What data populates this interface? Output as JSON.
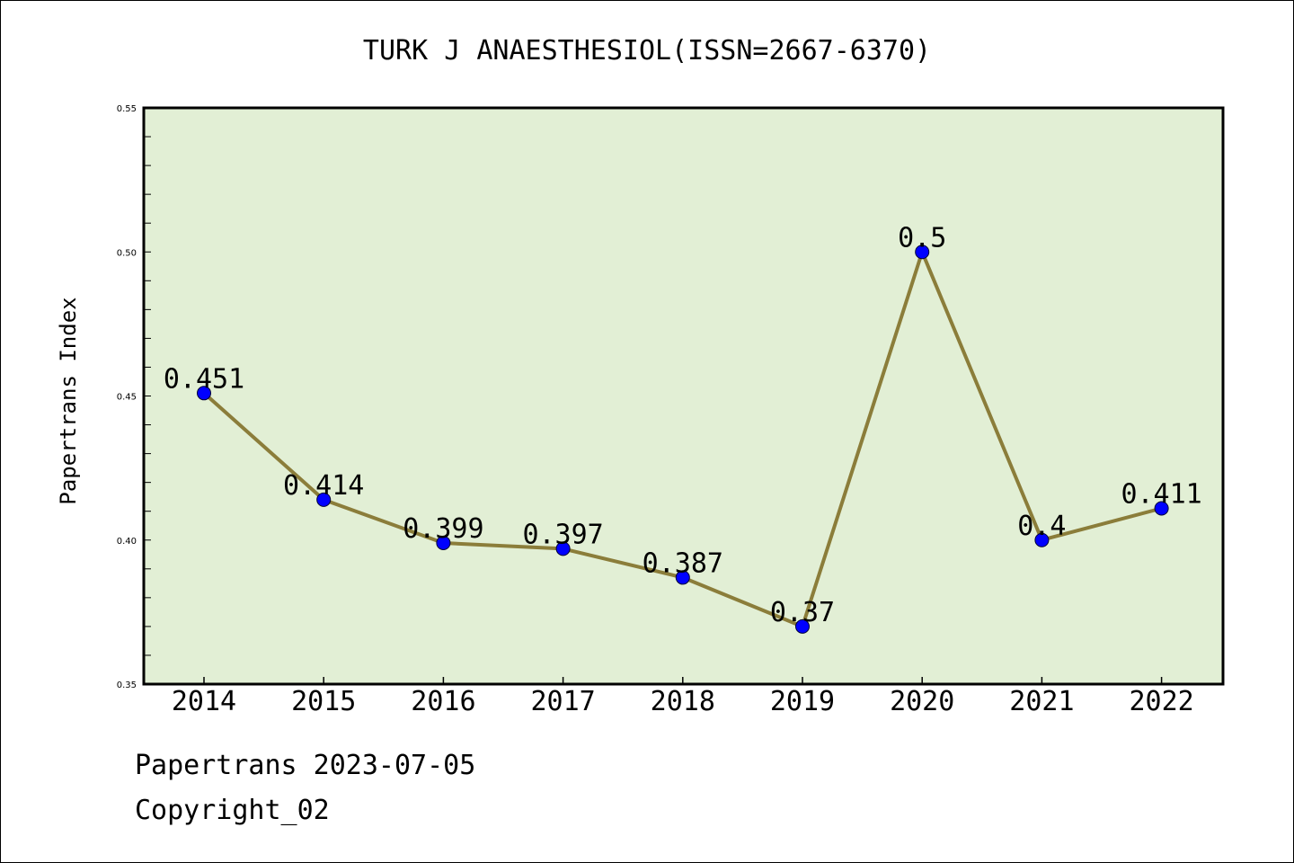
{
  "chart_data": {
    "type": "line",
    "title": "TURK J ANAESTHESIOL(ISSN=2667-6370)",
    "xlabel": "",
    "ylabel": "Papertrans Index",
    "categories": [
      "2014",
      "2015",
      "2016",
      "2017",
      "2018",
      "2019",
      "2020",
      "2021",
      "2022"
    ],
    "series": [
      {
        "values": [
          0.451,
          0.414,
          0.399,
          0.397,
          0.387,
          0.37,
          0.5,
          0.4,
          0.411
        ],
        "point_labels": [
          "0.451",
          "0.414",
          "0.399",
          "0.397",
          "0.387",
          "0.37",
          "0.5",
          "0.4",
          "0.411"
        ],
        "line_color": "#8b7d3a",
        "marker_color": "#0000ff"
      }
    ],
    "ylim": [
      0.35,
      0.55
    ],
    "yticks": [
      "0.35",
      "0.40",
      "0.45",
      "0.50",
      "0.55"
    ],
    "grid": false,
    "plot_background": "#e2efd5"
  },
  "footer": {
    "line1": "Papertrans 2023-07-05",
    "line2": "Copyright_02"
  }
}
